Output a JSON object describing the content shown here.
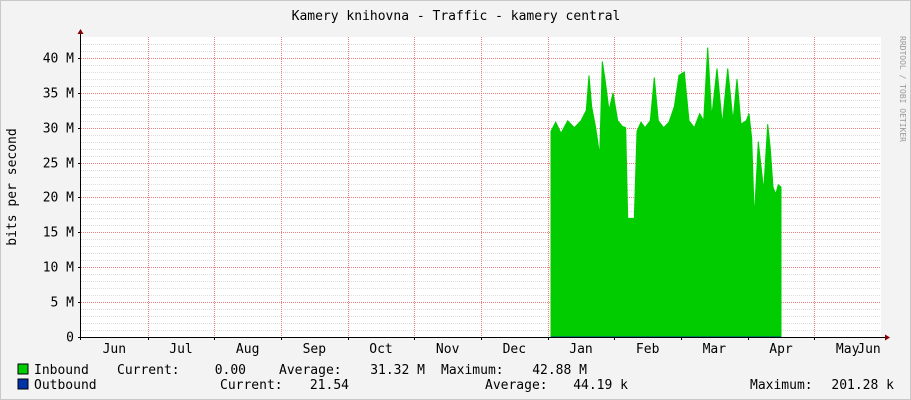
{
  "chart_data": {
    "type": "area",
    "title": "Kamery knihovna - Traffic - kamery central",
    "ylabel": "bits per second",
    "watermark": "RRDTOOL / TOBI OETIKER",
    "ylim": [
      0,
      43000000
    ],
    "y_ticks": [
      {
        "value": 0,
        "label": "0"
      },
      {
        "value": 5000000,
        "label": "5 M"
      },
      {
        "value": 10000000,
        "label": "10 M"
      },
      {
        "value": 15000000,
        "label": "15 M"
      },
      {
        "value": 20000000,
        "label": "20 M"
      },
      {
        "value": 25000000,
        "label": "25 M"
      },
      {
        "value": 30000000,
        "label": "30 M"
      },
      {
        "value": 35000000,
        "label": "35 M"
      },
      {
        "value": 40000000,
        "label": "40 M"
      }
    ],
    "x_range": [
      0,
      12.0
    ],
    "x_unit": "months",
    "x_month_labels": [
      "Jun",
      "Jul",
      "Aug",
      "Sep",
      "Oct",
      "Nov",
      "Dec",
      "Jan",
      "Feb",
      "Mar",
      "Apr",
      "May",
      "Jun"
    ],
    "grid": true,
    "colors": {
      "inbound": "#00cc00",
      "outbound": "#0033aa",
      "major_grid": "#f08080",
      "minor_grid": "#dddddd",
      "axis": "#000000",
      "arrow": "#880000",
      "background": "#f3f3f3",
      "plot_background": "#ffffff"
    },
    "series": [
      {
        "name": "Inbound",
        "color": "#00cc00",
        "current": "0.00",
        "average": "31.32 M",
        "maximum": "42.88 M",
        "points": [
          [
            7.05,
            0
          ],
          [
            7.05,
            29500000
          ],
          [
            7.12,
            30800000
          ],
          [
            7.2,
            29200000
          ],
          [
            7.3,
            31000000
          ],
          [
            7.4,
            30000000
          ],
          [
            7.5,
            31000000
          ],
          [
            7.58,
            32500000
          ],
          [
            7.62,
            37500000
          ],
          [
            7.66,
            33000000
          ],
          [
            7.72,
            30000000
          ],
          [
            7.78,
            26000000
          ],
          [
            7.82,
            39500000
          ],
          [
            7.86,
            37000000
          ],
          [
            7.92,
            32500000
          ],
          [
            7.98,
            35000000
          ],
          [
            8.05,
            31000000
          ],
          [
            8.12,
            30200000
          ],
          [
            8.17,
            30000000
          ],
          [
            8.2,
            17000000
          ],
          [
            8.3,
            17000000
          ],
          [
            8.34,
            29500000
          ],
          [
            8.4,
            30800000
          ],
          [
            8.46,
            30000000
          ],
          [
            8.54,
            31000000
          ],
          [
            8.6,
            37200000
          ],
          [
            8.66,
            31000000
          ],
          [
            8.74,
            30000000
          ],
          [
            8.82,
            30800000
          ],
          [
            8.9,
            33000000
          ],
          [
            8.97,
            37500000
          ],
          [
            9.05,
            38000000
          ],
          [
            9.12,
            31000000
          ],
          [
            9.2,
            30000000
          ],
          [
            9.28,
            32000000
          ],
          [
            9.34,
            31000000
          ],
          [
            9.4,
            41500000
          ],
          [
            9.46,
            31500000
          ],
          [
            9.54,
            38500000
          ],
          [
            9.62,
            30500000
          ],
          [
            9.7,
            38500000
          ],
          [
            9.78,
            31000000
          ],
          [
            9.84,
            37000000
          ],
          [
            9.9,
            30500000
          ],
          [
            9.98,
            31000000
          ],
          [
            10.02,
            32000000
          ],
          [
            10.06,
            28500000
          ],
          [
            10.1,
            17000000
          ],
          [
            10.16,
            28000000
          ],
          [
            10.24,
            21000000
          ],
          [
            10.3,
            30500000
          ],
          [
            10.34,
            27000000
          ],
          [
            10.38,
            21500000
          ],
          [
            10.42,
            20500000
          ],
          [
            10.46,
            21800000
          ],
          [
            10.5,
            21500000
          ],
          [
            10.5,
            0
          ]
        ]
      },
      {
        "name": "Outbound",
        "color": "#0033aa",
        "current": "21.54",
        "average": "44.19 k",
        "maximum": "201.28 k",
        "points": [
          [
            7.05,
            0
          ],
          [
            10.5,
            0
          ]
        ]
      }
    ],
    "legend_labels": {
      "current": "Current:",
      "average": "Average:",
      "maximum": "Maximum:"
    }
  }
}
